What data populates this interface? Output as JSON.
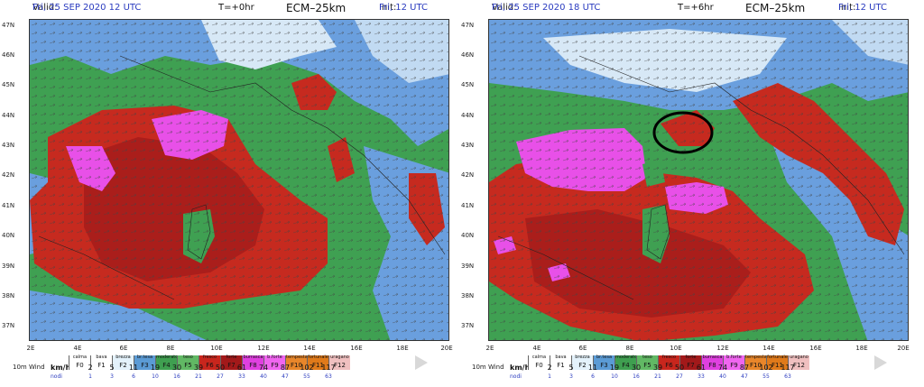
{
  "panels": [
    {
      "valid_label": "Valid:",
      "valid_date": "Fri, 25 SEP 2020  12 UTC",
      "step": "T=+0hr",
      "model": "ECM–25km",
      "init_label": "Init:",
      "init_date": "Fri, 12 UTC"
    },
    {
      "valid_label": "Valid:",
      "valid_date": "Fri, 25 SEP 2020  18 UTC",
      "step": "T=+6hr",
      "model": "ECM–25km",
      "init_label": "Init:",
      "init_date": "Fri, 12 UTC"
    }
  ],
  "lat_labels": [
    "47N",
    "46N",
    "45N",
    "44N",
    "43N",
    "42N",
    "41N",
    "40N",
    "39N",
    "38N",
    "37N"
  ],
  "lon_labels": [
    "2E",
    "4E",
    "6E",
    "8E",
    "10E",
    "12E",
    "14E",
    "16E",
    "18E",
    "20E"
  ],
  "legend": {
    "title": "10m Wind",
    "unit_kmh": "km/h",
    "unit_knots": "nodi",
    "names": [
      "calma",
      "bava",
      "brezza",
      "br.tesa",
      "moderato",
      "teso",
      "fresco",
      "forte",
      "burrasca",
      "b.forte",
      "tempesta",
      "fortunale",
      "uragano"
    ],
    "codes": [
      "F0",
      "F1",
      "F2",
      "F3",
      "F4",
      "F5",
      "F6",
      "F7",
      "F8",
      "F9",
      "F10",
      "F11",
      "F12"
    ],
    "colors": [
      "#ffffff",
      "#ffffff",
      "#e4f2fb",
      "#5b9bd5",
      "#3f9f50",
      "#61b864",
      "#c8261d",
      "#a2191a",
      "#e040e0",
      "#f066f0",
      "#e8862a",
      "#e07a1a",
      "#f0c0c0"
    ],
    "kmh": [
      "2",
      "5",
      "11",
      "19",
      "30",
      "39",
      "50",
      "61",
      "74",
      "87",
      "102",
      "117"
    ],
    "knots": [
      "1",
      "3",
      "6",
      "10",
      "16",
      "21",
      "27",
      "33",
      "40",
      "47",
      "55",
      "63"
    ]
  },
  "map_colors": {
    "green": "#3fa052",
    "lightgreen": "#62b866",
    "blue": "#6a9fde",
    "paleblue": "#d7e8f6",
    "red": "#c62a1f",
    "darkred": "#9e1a1a",
    "magenta": "#e850e8"
  },
  "annotation": "black circle around wind maximum north of Corsica (T=+6hr panel)"
}
